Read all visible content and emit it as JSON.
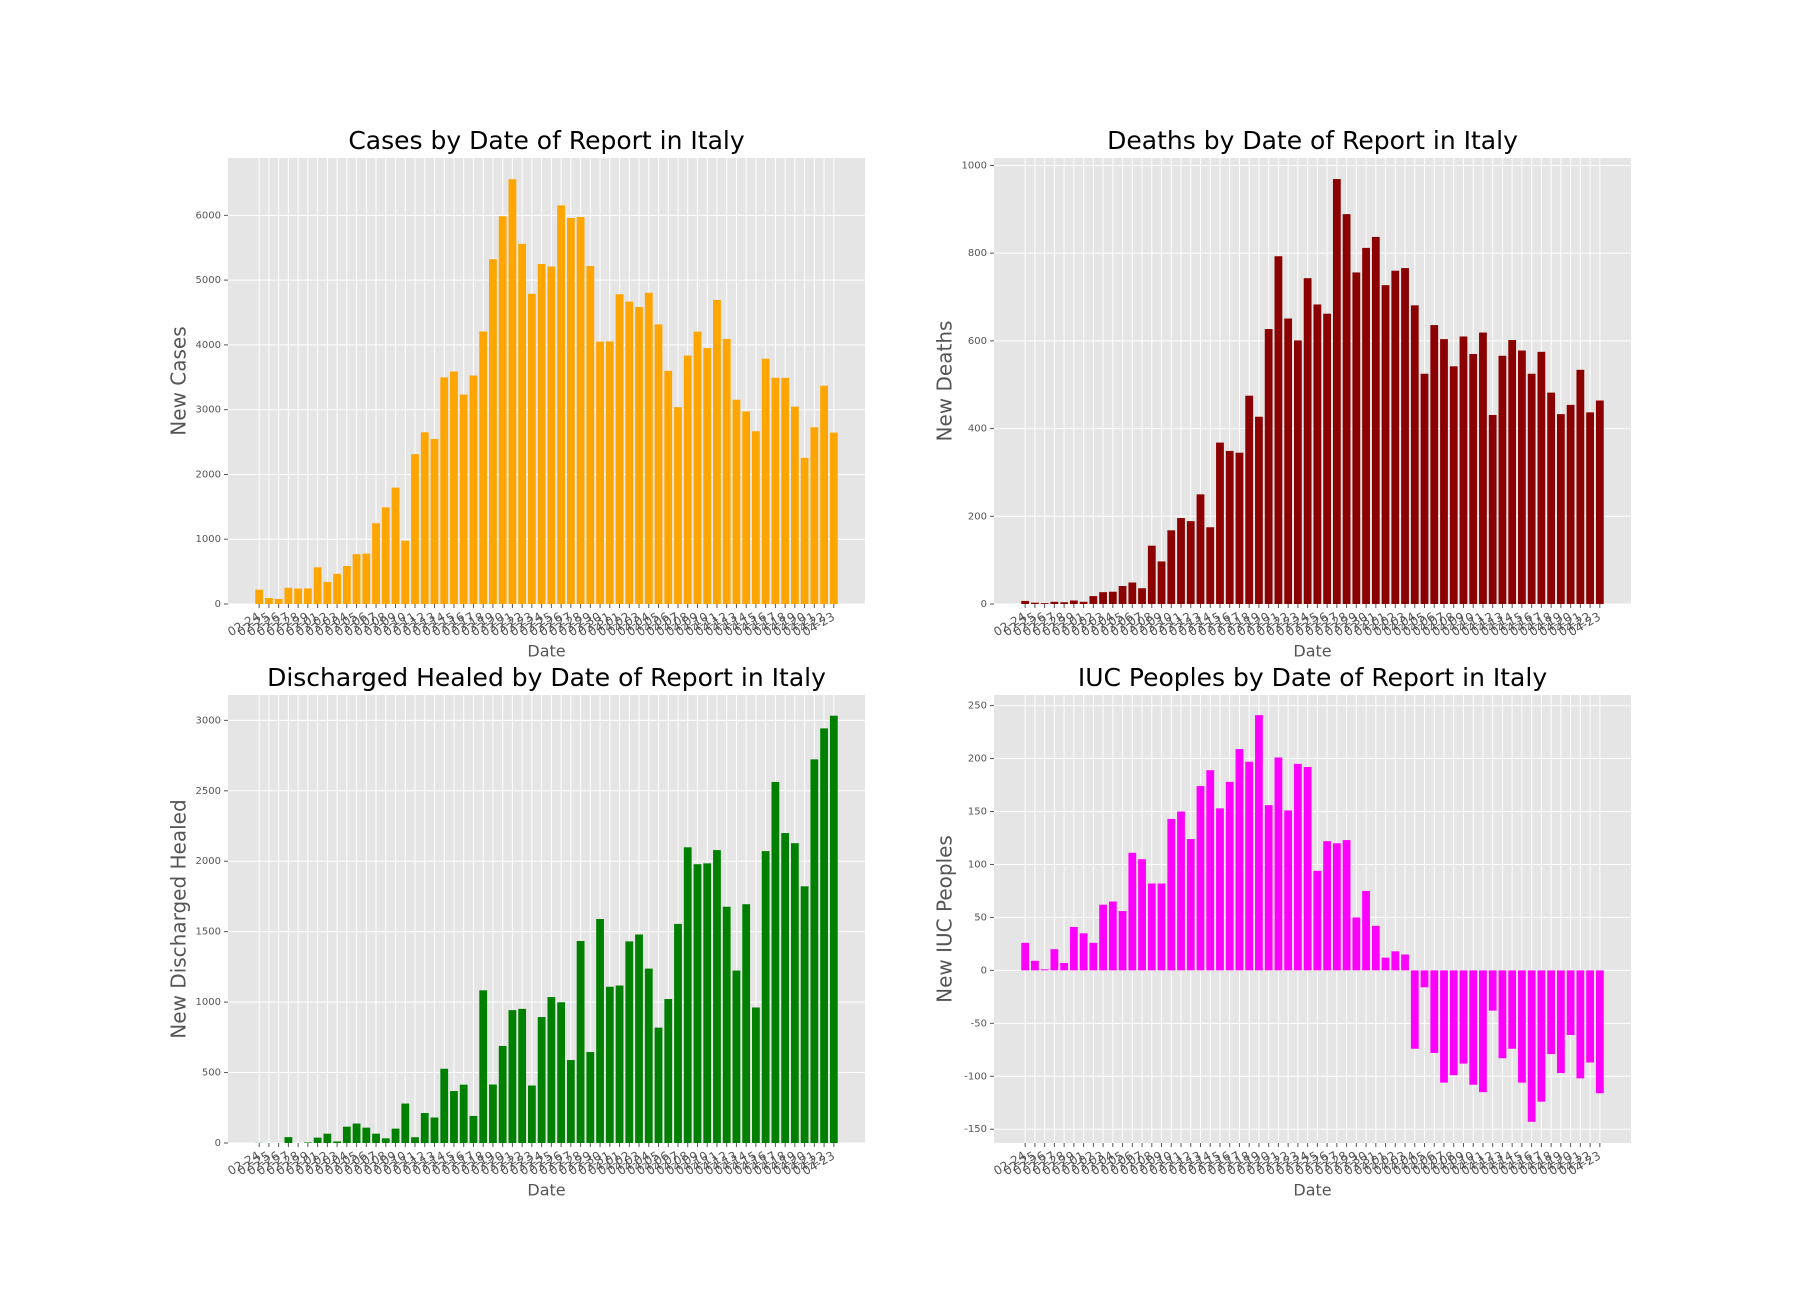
{
  "chart_data": [
    {
      "type": "bar",
      "title": "Cases by Date of Report in Italy",
      "xlabel": "Date",
      "ylabel": "New Cases",
      "color": "#ffa500",
      "grid": true,
      "categories": [
        "02-24",
        "02-25",
        "02-26",
        "02-27",
        "02-28",
        "02-29",
        "03-01",
        "03-02",
        "03-03",
        "03-04",
        "03-05",
        "03-06",
        "03-07",
        "03-08",
        "03-09",
        "03-10",
        "03-11",
        "03-12",
        "03-13",
        "03-14",
        "03-15",
        "03-16",
        "03-17",
        "03-18",
        "03-19",
        "03-20",
        "03-21",
        "03-22",
        "03-23",
        "03-24",
        "03-25",
        "03-26",
        "03-27",
        "03-28",
        "03-29",
        "03-30",
        "03-31",
        "04-01",
        "04-02",
        "04-03",
        "04-04",
        "04-05",
        "04-06",
        "04-07",
        "04-08",
        "04-09",
        "04-10",
        "04-11",
        "04-12",
        "04-13",
        "04-14",
        "04-15",
        "04-16",
        "04-17",
        "04-18",
        "04-19",
        "04-20",
        "04-21",
        "04-22",
        "04-23"
      ],
      "values": [
        221,
        93,
        78,
        250,
        238,
        240,
        566,
        342,
        466,
        587,
        769,
        778,
        1247,
        1492,
        1797,
        977,
        2313,
        2651,
        2547,
        3497,
        3590,
        3233,
        3526,
        4207,
        5322,
        5986,
        6557,
        5560,
        4789,
        5249,
        5210,
        6153,
        5959,
        5974,
        5217,
        4050,
        4053,
        4782,
        4668,
        4585,
        4805,
        4316,
        3599,
        3039,
        3836,
        4204,
        3951,
        4694,
        4092,
        3153,
        2972,
        2667,
        3786,
        3493,
        3491,
        3047,
        2256,
        2729,
        3370,
        2646
      ],
      "ylim": [
        0,
        6885
      ],
      "yticks": [
        0,
        1000,
        2000,
        3000,
        4000,
        5000,
        6000
      ]
    },
    {
      "type": "bar",
      "title": "Deaths by Date of Report in Italy",
      "xlabel": "Date",
      "ylabel": "New Deaths",
      "color": "#8b0000",
      "grid": true,
      "categories": [
        "02-24",
        "02-25",
        "02-26",
        "02-27",
        "02-28",
        "02-29",
        "03-01",
        "03-02",
        "03-03",
        "03-04",
        "03-05",
        "03-06",
        "03-07",
        "03-08",
        "03-09",
        "03-10",
        "03-11",
        "03-12",
        "03-13",
        "03-14",
        "03-15",
        "03-16",
        "03-17",
        "03-18",
        "03-19",
        "03-20",
        "03-21",
        "03-22",
        "03-23",
        "03-24",
        "03-25",
        "03-26",
        "03-27",
        "03-28",
        "03-29",
        "03-30",
        "03-31",
        "04-01",
        "04-02",
        "04-03",
        "04-04",
        "04-05",
        "04-06",
        "04-07",
        "04-08",
        "04-09",
        "04-10",
        "04-11",
        "04-12",
        "04-13",
        "04-14",
        "04-15",
        "04-16",
        "04-17",
        "04-18",
        "04-19",
        "04-20",
        "04-21",
        "04-22",
        "04-23"
      ],
      "values": [
        7,
        3,
        2,
        5,
        4,
        8,
        5,
        18,
        27,
        28,
        41,
        49,
        36,
        133,
        97,
        168,
        196,
        189,
        250,
        175,
        368,
        349,
        345,
        475,
        427,
        627,
        793,
        651,
        601,
        743,
        683,
        662,
        969,
        889,
        756,
        812,
        837,
        727,
        760,
        766,
        681,
        525,
        636,
        604,
        542,
        610,
        570,
        619,
        431,
        566,
        602,
        578,
        525,
        575,
        482,
        433,
        454,
        534,
        437,
        464
      ],
      "ylim": [
        0,
        1017
      ],
      "yticks": [
        0,
        200,
        400,
        600,
        800,
        1000
      ]
    },
    {
      "type": "bar",
      "title": "Discharged Healed by Date of Report in Italy",
      "xlabel": "Date",
      "ylabel": "New Discharged Healed",
      "color": "#008000",
      "grid": true,
      "categories": [
        "02-24",
        "02-25",
        "02-26",
        "02-27",
        "02-28",
        "02-29",
        "03-01",
        "03-02",
        "03-03",
        "03-04",
        "03-05",
        "03-06",
        "03-07",
        "03-08",
        "03-09",
        "03-10",
        "03-11",
        "03-12",
        "03-13",
        "03-14",
        "03-15",
        "03-16",
        "03-17",
        "03-18",
        "03-19",
        "03-20",
        "03-21",
        "03-22",
        "03-23",
        "03-24",
        "03-25",
        "03-26",
        "03-27",
        "03-28",
        "03-29",
        "03-30",
        "03-31",
        "04-01",
        "04-02",
        "04-03",
        "04-04",
        "04-05",
        "04-06",
        "04-07",
        "04-08",
        "04-09",
        "04-10",
        "04-11",
        "04-12",
        "04-13",
        "04-14",
        "04-15",
        "04-16",
        "04-17",
        "04-18",
        "04-19",
        "04-20",
        "04-21",
        "04-22",
        "04-23"
      ],
      "values": [
        1,
        0,
        0,
        42,
        0,
        4,
        38,
        66,
        11,
        116,
        138,
        109,
        66,
        33,
        102,
        280,
        41,
        213,
        181,
        527,
        369,
        414,
        192,
        1084,
        415,
        689,
        943,
        952,
        408,
        894,
        1036,
        999,
        589,
        1434,
        646,
        1590,
        1109,
        1118,
        1431,
        1480,
        1238,
        819,
        1022,
        1555,
        2099,
        1979,
        1985,
        2079,
        1677,
        1224,
        1695,
        962,
        2072,
        2563,
        2200,
        2128,
        1822,
        2723,
        2943,
        3033
      ],
      "ylim": [
        0,
        3180
      ],
      "yticks": [
        0,
        500,
        1000,
        1500,
        2000,
        2500,
        3000
      ]
    },
    {
      "type": "bar",
      "title": "IUC Peoples by Date of Report in Italy",
      "xlabel": "Date",
      "ylabel": "New IUC Peoples",
      "color": "#ff00ff",
      "grid": true,
      "categories": [
        "02-24",
        "02-25",
        "02-26",
        "02-27",
        "02-28",
        "02-29",
        "03-01",
        "03-02",
        "03-03",
        "03-04",
        "03-05",
        "03-06",
        "03-07",
        "03-08",
        "03-09",
        "03-10",
        "03-11",
        "03-12",
        "03-13",
        "03-14",
        "03-15",
        "03-16",
        "03-17",
        "03-18",
        "03-19",
        "03-20",
        "03-21",
        "03-22",
        "03-23",
        "03-24",
        "03-25",
        "03-26",
        "03-27",
        "03-28",
        "03-29",
        "03-30",
        "03-31",
        "04-01",
        "04-02",
        "04-03",
        "04-04",
        "04-05",
        "04-06",
        "04-07",
        "04-08",
        "04-09",
        "04-10",
        "04-11",
        "04-12",
        "04-13",
        "04-14",
        "04-15",
        "04-16",
        "04-17",
        "04-18",
        "04-19",
        "04-20",
        "04-21",
        "04-22",
        "04-23"
      ],
      "values": [
        26,
        9,
        1,
        20,
        7,
        41,
        35,
        26,
        62,
        65,
        56,
        111,
        105,
        82,
        82,
        143,
        150,
        124,
        174,
        189,
        153,
        178,
        209,
        197,
        241,
        156,
        201,
        151,
        195,
        192,
        94,
        122,
        120,
        123,
        50,
        75,
        42,
        12,
        18,
        15,
        -74,
        -16,
        -78,
        -106,
        -99,
        -88,
        -108,
        -115,
        -38,
        -83,
        -74,
        -106,
        -143,
        -124,
        -79,
        -97,
        -61,
        -102,
        -87,
        -116
      ],
      "ylim": [
        -163,
        260
      ],
      "yticks": [
        -150,
        -100,
        -50,
        0,
        50,
        100,
        150,
        200,
        250
      ]
    }
  ]
}
